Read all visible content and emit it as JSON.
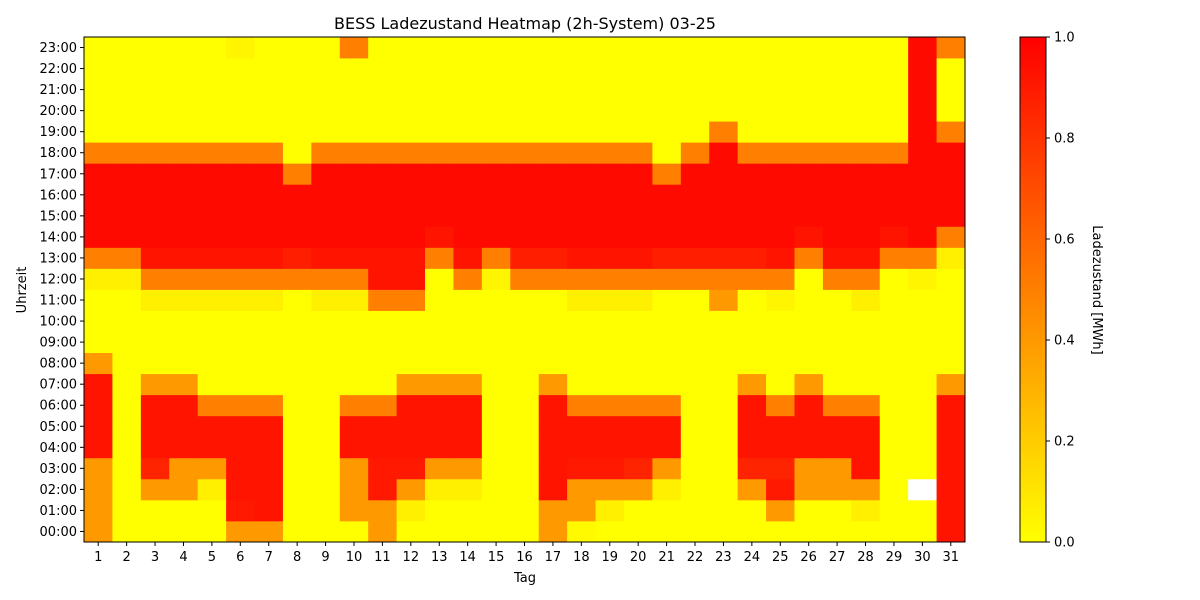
{
  "chart_data": {
    "type": "heatmap",
    "title": "BESS Ladezustand Heatmap (2h-System) 03-25",
    "xlabel": "Tag",
    "ylabel": "Uhrzeit",
    "colorbar_label": "Ladezustand [MWh]",
    "x": [
      "1",
      "2",
      "3",
      "4",
      "5",
      "6",
      "7",
      "8",
      "9",
      "10",
      "11",
      "12",
      "13",
      "14",
      "15",
      "16",
      "17",
      "18",
      "19",
      "20",
      "21",
      "22",
      "23",
      "24",
      "25",
      "26",
      "27",
      "28",
      "29",
      "30",
      "31"
    ],
    "y": [
      "00:00",
      "01:00",
      "02:00",
      "03:00",
      "04:00",
      "05:00",
      "06:00",
      "07:00",
      "08:00",
      "09:00",
      "10:00",
      "11:00",
      "12:00",
      "13:00",
      "14:00",
      "15:00",
      "16:00",
      "17:00",
      "18:00",
      "19:00",
      "20:00",
      "21:00",
      "22:00",
      "23:00"
    ],
    "colorbar_ticks": [
      "0.0",
      "0.2",
      "0.4",
      "0.6",
      "0.8",
      "1.0"
    ],
    "vmin": 0.0,
    "vmax": 1.0,
    "colormap": "autumn_r",
    "missing_color": "#ffffff",
    "values": [
      [
        0.4,
        0,
        0,
        0,
        0,
        0.4,
        0.4,
        0,
        0,
        0,
        0.4,
        0,
        0,
        0,
        0,
        0,
        0.4,
        0.02,
        0,
        0,
        0,
        0,
        0,
        0,
        0,
        0,
        0,
        0,
        0,
        0,
        0.92
      ],
      [
        0.4,
        0,
        0,
        0,
        0,
        0.9,
        0.92,
        0,
        0,
        0.4,
        0.4,
        0.06,
        0,
        0,
        0,
        0,
        0.4,
        0.4,
        0.06,
        0,
        0,
        0,
        0,
        0,
        0.4,
        0,
        0,
        0.06,
        0,
        0,
        0.92
      ],
      [
        0.4,
        0,
        0.4,
        0.4,
        0.06,
        0.92,
        0.92,
        0,
        0,
        0.4,
        0.9,
        0.4,
        0.06,
        0.06,
        0,
        0,
        0.92,
        0.4,
        0.4,
        0.4,
        0.06,
        0,
        0,
        0.4,
        0.9,
        0.4,
        0.4,
        0.4,
        0,
        null,
        0.92
      ],
      [
        0.4,
        0,
        0.86,
        0.4,
        0.4,
        0.92,
        0.92,
        0,
        0,
        0.4,
        0.9,
        0.9,
        0.4,
        0.4,
        0,
        0,
        0.92,
        0.9,
        0.9,
        0.86,
        0.4,
        0,
        0,
        0.86,
        0.86,
        0.4,
        0.4,
        0.92,
        0,
        0,
        0.92
      ],
      [
        0.92,
        0,
        0.92,
        0.92,
        0.92,
        0.92,
        0.92,
        0,
        0,
        0.92,
        0.92,
        0.92,
        0.92,
        0.92,
        0,
        0,
        0.92,
        0.92,
        0.92,
        0.92,
        0.92,
        0,
        0,
        0.92,
        0.92,
        0.92,
        0.92,
        0.92,
        0,
        0,
        0.92
      ],
      [
        0.92,
        0,
        0.92,
        0.92,
        0.92,
        0.92,
        0.92,
        0,
        0,
        0.92,
        0.92,
        0.92,
        0.92,
        0.92,
        0,
        0,
        0.92,
        0.92,
        0.92,
        0.92,
        0.92,
        0,
        0,
        0.92,
        0.92,
        0.92,
        0.92,
        0.92,
        0,
        0,
        0.92
      ],
      [
        0.92,
        0,
        0.92,
        0.92,
        0.5,
        0.5,
        0.5,
        0,
        0,
        0.5,
        0.5,
        0.92,
        0.92,
        0.92,
        0,
        0,
        0.92,
        0.5,
        0.5,
        0.5,
        0.5,
        0,
        0,
        0.92,
        0.5,
        0.92,
        0.5,
        0.5,
        0,
        0,
        0.92
      ],
      [
        0.92,
        0,
        0.4,
        0.4,
        0,
        0,
        0,
        0,
        0,
        0,
        0,
        0.4,
        0.4,
        0.4,
        0,
        0,
        0.4,
        0,
        0,
        0,
        0,
        0,
        0,
        0.4,
        0,
        0.4,
        0,
        0,
        0,
        0,
        0.4
      ],
      [
        0.4,
        0,
        0,
        0,
        0,
        0,
        0,
        0,
        0,
        0,
        0,
        0,
        0,
        0,
        0,
        0,
        0,
        0,
        0,
        0,
        0,
        0,
        0,
        0,
        0,
        0,
        0,
        0,
        0,
        0,
        0
      ],
      [
        0,
        0,
        0,
        0,
        0,
        0,
        0,
        0,
        0,
        0,
        0,
        0,
        0,
        0,
        0,
        0,
        0,
        0,
        0,
        0,
        0,
        0,
        0,
        0,
        0,
        0,
        0,
        0,
        0,
        0,
        0
      ],
      [
        0,
        0,
        0,
        0,
        0,
        0,
        0,
        0,
        0,
        0,
        0,
        0,
        0,
        0,
        0,
        0,
        0,
        0,
        0,
        0,
        0,
        0,
        0,
        0,
        0,
        0,
        0,
        0,
        0,
        0,
        0
      ],
      [
        0,
        0,
        0.06,
        0.06,
        0.06,
        0.06,
        0.06,
        0,
        0.06,
        0.06,
        0.5,
        0.5,
        0,
        0,
        0,
        0,
        0,
        0.06,
        0.06,
        0.06,
        0,
        0,
        0.4,
        0,
        0.04,
        0,
        0,
        0.06,
        0,
        0,
        0
      ],
      [
        0.06,
        0.06,
        0.5,
        0.5,
        0.5,
        0.5,
        0.5,
        0.5,
        0.5,
        0.5,
        0.92,
        0.92,
        0,
        0.5,
        0.04,
        0.5,
        0.5,
        0.5,
        0.5,
        0.5,
        0.5,
        0.5,
        0.5,
        0.5,
        0.5,
        0,
        0.5,
        0.5,
        0,
        0.04,
        0
      ],
      [
        0.5,
        0.5,
        0.92,
        0.92,
        0.92,
        0.92,
        0.92,
        0.88,
        0.92,
        0.92,
        0.92,
        0.92,
        0.5,
        0.92,
        0.5,
        0.88,
        0.88,
        0.92,
        0.92,
        0.92,
        0.88,
        0.88,
        0.88,
        0.88,
        0.92,
        0.5,
        0.92,
        0.92,
        0.5,
        0.5,
        0.06
      ],
      [
        0.96,
        0.96,
        0.96,
        0.96,
        0.96,
        0.96,
        0.96,
        0.96,
        0.96,
        0.96,
        0.96,
        0.96,
        0.92,
        0.96,
        0.96,
        0.96,
        0.96,
        0.96,
        0.96,
        0.96,
        0.96,
        0.96,
        0.96,
        0.96,
        0.96,
        0.92,
        0.96,
        0.96,
        0.92,
        0.96,
        0.5
      ],
      [
        0.96,
        0.96,
        0.96,
        0.96,
        0.96,
        0.96,
        0.96,
        0.96,
        0.96,
        0.96,
        0.96,
        0.96,
        0.96,
        0.96,
        0.96,
        0.96,
        0.96,
        0.96,
        0.96,
        0.96,
        0.96,
        0.96,
        0.96,
        0.96,
        0.96,
        0.96,
        0.96,
        0.96,
        0.96,
        0.96,
        0.96
      ],
      [
        0.96,
        0.96,
        0.96,
        0.96,
        0.96,
        0.96,
        0.96,
        0.96,
        0.96,
        0.96,
        0.96,
        0.96,
        0.96,
        0.96,
        0.96,
        0.96,
        0.96,
        0.96,
        0.96,
        0.96,
        0.96,
        0.96,
        0.96,
        0.96,
        0.96,
        0.96,
        0.96,
        0.96,
        0.96,
        0.96,
        0.96
      ],
      [
        0.96,
        0.96,
        0.96,
        0.96,
        0.96,
        0.96,
        0.96,
        0.5,
        0.96,
        0.96,
        0.96,
        0.96,
        0.96,
        0.96,
        0.96,
        0.96,
        0.96,
        0.96,
        0.96,
        0.96,
        0.5,
        0.96,
        0.96,
        0.96,
        0.96,
        0.96,
        0.96,
        0.96,
        0.96,
        0.96,
        0.96
      ],
      [
        0.5,
        0.5,
        0.5,
        0.5,
        0.5,
        0.5,
        0.5,
        0,
        0.5,
        0.5,
        0.5,
        0.5,
        0.5,
        0.5,
        0.5,
        0.5,
        0.5,
        0.5,
        0.5,
        0.5,
        0,
        0.5,
        0.96,
        0.5,
        0.5,
        0.5,
        0.5,
        0.5,
        0.5,
        0.96,
        0.96
      ],
      [
        0,
        0,
        0,
        0,
        0,
        0,
        0,
        0,
        0,
        0,
        0,
        0,
        0,
        0,
        0,
        0,
        0,
        0,
        0,
        0,
        0,
        0,
        0.5,
        0,
        0,
        0,
        0,
        0,
        0,
        0.96,
        0.5
      ],
      [
        0,
        0,
        0,
        0,
        0,
        0,
        0,
        0,
        0,
        0,
        0,
        0,
        0,
        0,
        0,
        0,
        0,
        0,
        0,
        0,
        0,
        0,
        0,
        0,
        0,
        0,
        0,
        0,
        0,
        0.96,
        0
      ],
      [
        0,
        0,
        0,
        0,
        0,
        0,
        0,
        0,
        0,
        0,
        0,
        0,
        0,
        0,
        0,
        0,
        0,
        0,
        0,
        0,
        0,
        0,
        0,
        0,
        0,
        0,
        0,
        0,
        0,
        0.96,
        0
      ],
      [
        0,
        0,
        0,
        0,
        0,
        0,
        0,
        0,
        0,
        0,
        0,
        0,
        0,
        0,
        0,
        0,
        0,
        0,
        0,
        0,
        0,
        0,
        0,
        0,
        0,
        0,
        0,
        0,
        0,
        0.96,
        0
      ],
      [
        0,
        0,
        0,
        0,
        0,
        0.04,
        0,
        0,
        0,
        0.5,
        0,
        0,
        0,
        0,
        0,
        0,
        0,
        0,
        0,
        0,
        0,
        0,
        0,
        0,
        0,
        0,
        0,
        0,
        0,
        0.96,
        0.5
      ]
    ]
  }
}
